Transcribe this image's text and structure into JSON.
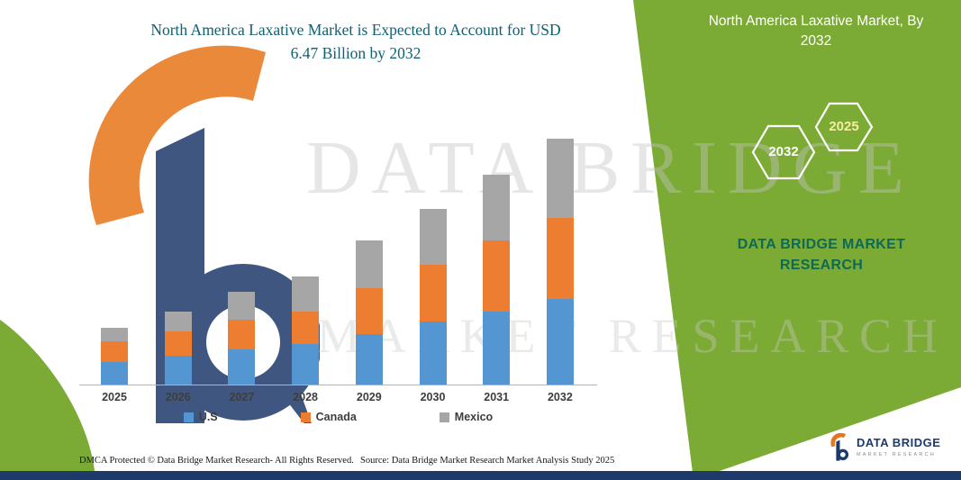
{
  "title": {
    "line1": "North America Laxative Market is Expected to Account for USD",
    "line2": "6.47 Billion by 2032"
  },
  "panel": {
    "heading_line1": "North America Laxative Market, By",
    "heading_line2": "2032",
    "hex_left_label": "2032",
    "hex_right_label": "2025",
    "brand_line1": "DATA BRIDGE MARKET",
    "brand_line2": "RESEARCH"
  },
  "watermark": {
    "line1": "DATA BRIDGE",
    "line2": "MARKET RESEARCH"
  },
  "footer": {
    "dmca": "DMCA Protected © Data Bridge Market Research-  All Rights Reserved.",
    "source": "Source: Data Bridge Market Research  Market Analysis Study 2025"
  },
  "logo": {
    "name": "DATA BRIDGE",
    "tagline": "MARKET RESEARCH"
  },
  "colors": {
    "panel_green": "#7cab35",
    "title_teal": "#0f6173",
    "navy": "#1e3a6b",
    "logo_orange": "#e8751a",
    "us_blue": "#5496d2",
    "canada_orange": "#ed7d31",
    "mexico_gray": "#a6a6a6"
  },
  "chart_data": {
    "type": "bar",
    "stacked": true,
    "title": "North America Laxative Market is Expected to Account for USD 6.47 Billion by 2032",
    "unit": "USD Billion",
    "categories": [
      "2025",
      "2026",
      "2027",
      "2028",
      "2029",
      "2030",
      "2031",
      "2032"
    ],
    "series": [
      {
        "name": "U.S",
        "color": "#5496d2",
        "values": [
          0.59,
          0.76,
          0.92,
          1.07,
          1.33,
          1.66,
          1.92,
          2.25
        ]
      },
      {
        "name": "Canada",
        "color": "#ed7d31",
        "values": [
          0.55,
          0.64,
          0.78,
          0.85,
          1.21,
          1.49,
          1.87,
          2.13
        ]
      },
      {
        "name": "Mexico",
        "color": "#a6a6a6",
        "values": [
          0.36,
          0.52,
          0.73,
          0.92,
          1.26,
          1.47,
          1.73,
          2.09
        ]
      }
    ],
    "totals": [
      1.5,
      1.92,
      2.43,
      2.84,
      3.8,
      4.62,
      5.52,
      6.47
    ],
    "ylim": [
      0,
      7
    ],
    "grid": false,
    "legend_position": "bottom"
  }
}
